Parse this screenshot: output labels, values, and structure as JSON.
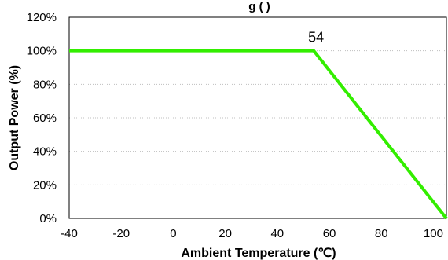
{
  "chart_data": {
    "type": "line",
    "title": "g    (         )",
    "xlabel": "Ambient Temperature (℃)",
    "ylabel": "Output Power (%)",
    "xlim": [
      -40,
      105
    ],
    "ylim": [
      0,
      120
    ],
    "x_ticks": [
      "-40",
      "-20",
      "0",
      "20",
      "40",
      "60",
      "80",
      "100"
    ],
    "x_tick_values": [
      -40,
      -20,
      0,
      20,
      40,
      60,
      80,
      100
    ],
    "y_ticks": [
      "0%",
      "20%",
      "40%",
      "60%",
      "80%",
      "100%",
      "120%"
    ],
    "y_tick_values": [
      0,
      20,
      40,
      60,
      80,
      100,
      120
    ],
    "grid": true,
    "line_color": "#33ee00",
    "series": [
      {
        "x": [
          -40,
          54,
          105
        ],
        "y": [
          100,
          100,
          0
        ]
      }
    ],
    "annotations": [
      {
        "text": "54",
        "x": 54,
        "y": 100
      }
    ]
  }
}
